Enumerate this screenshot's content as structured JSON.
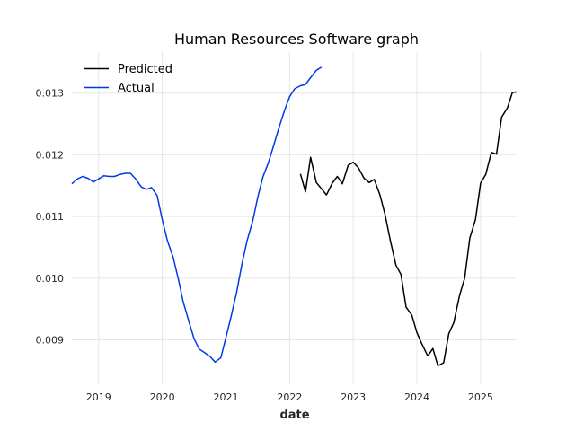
{
  "chart_data": {
    "type": "line",
    "title": "Human Resources Software graph",
    "xlabel": "date",
    "ylabel": "",
    "xlim": [
      2018.58,
      2025.58
    ],
    "ylim": [
      0.00828,
      0.01368
    ],
    "x_ticks": [
      2019,
      2020,
      2021,
      2022,
      2023,
      2024,
      2025
    ],
    "y_ticks": [
      0.009,
      0.01,
      0.011,
      0.012,
      0.013
    ],
    "y_tick_labels": [
      "0.009",
      "0.010",
      "0.011",
      "0.012",
      "0.013"
    ],
    "grid": true,
    "legend_position": "top-left",
    "series": [
      {
        "name": "Predicted",
        "color": "#000000",
        "points": [
          [
            2022.17,
            0.01169
          ],
          [
            2022.25,
            0.0114
          ],
          [
            2022.33,
            0.01196
          ],
          [
            2022.42,
            0.01155
          ],
          [
            2022.5,
            0.01145
          ],
          [
            2022.58,
            0.01135
          ],
          [
            2022.67,
            0.01154
          ],
          [
            2022.75,
            0.01165
          ],
          [
            2022.83,
            0.01153
          ],
          [
            2022.92,
            0.01183
          ],
          [
            2023.0,
            0.01188
          ],
          [
            2023.08,
            0.01179
          ],
          [
            2023.17,
            0.01162
          ],
          [
            2023.25,
            0.01155
          ],
          [
            2023.33,
            0.0116
          ],
          [
            2023.42,
            0.01135
          ],
          [
            2023.5,
            0.01103
          ],
          [
            2023.58,
            0.01062
          ],
          [
            2023.67,
            0.01021
          ],
          [
            2023.75,
            0.01006
          ],
          [
            2023.83,
            0.00953
          ],
          [
            2023.92,
            0.0094
          ],
          [
            2024.0,
            0.00912
          ],
          [
            2024.08,
            0.00893
          ],
          [
            2024.17,
            0.00874
          ],
          [
            2024.25,
            0.00886
          ],
          [
            2024.33,
            0.00858
          ],
          [
            2024.42,
            0.00863
          ],
          [
            2024.5,
            0.0091
          ],
          [
            2024.58,
            0.00928
          ],
          [
            2024.67,
            0.00972
          ],
          [
            2024.75,
            0.01
          ],
          [
            2024.83,
            0.01065
          ],
          [
            2024.92,
            0.01095
          ],
          [
            2025.0,
            0.01154
          ],
          [
            2025.08,
            0.01168
          ],
          [
            2025.17,
            0.01204
          ],
          [
            2025.25,
            0.01201
          ],
          [
            2025.33,
            0.01261
          ],
          [
            2025.42,
            0.01276
          ],
          [
            2025.5,
            0.01301
          ],
          [
            2025.58,
            0.01302
          ]
        ]
      },
      {
        "name": "Actual",
        "color": "#0039e6",
        "points": [
          [
            2018.58,
            0.01153
          ],
          [
            2018.67,
            0.01161
          ],
          [
            2018.75,
            0.01165
          ],
          [
            2018.83,
            0.01162
          ],
          [
            2018.92,
            0.01156
          ],
          [
            2019.0,
            0.01161
          ],
          [
            2019.08,
            0.01166
          ],
          [
            2019.17,
            0.01165
          ],
          [
            2019.25,
            0.01165
          ],
          [
            2019.33,
            0.01168
          ],
          [
            2019.42,
            0.0117
          ],
          [
            2019.5,
            0.0117
          ],
          [
            2019.58,
            0.01161
          ],
          [
            2019.67,
            0.01148
          ],
          [
            2019.75,
            0.01144
          ],
          [
            2019.83,
            0.01147
          ],
          [
            2019.92,
            0.01134
          ],
          [
            2020.0,
            0.01095
          ],
          [
            2020.08,
            0.01061
          ],
          [
            2020.17,
            0.01034
          ],
          [
            2020.25,
            0.01
          ],
          [
            2020.33,
            0.00961
          ],
          [
            2020.42,
            0.00929
          ],
          [
            2020.5,
            0.00902
          ],
          [
            2020.58,
            0.00885
          ],
          [
            2020.67,
            0.00879
          ],
          [
            2020.75,
            0.00873
          ],
          [
            2020.83,
            0.00864
          ],
          [
            2020.92,
            0.00871
          ],
          [
            2021.0,
            0.00904
          ],
          [
            2021.08,
            0.00937
          ],
          [
            2021.17,
            0.00978
          ],
          [
            2021.25,
            0.01022
          ],
          [
            2021.33,
            0.0106
          ],
          [
            2021.42,
            0.01092
          ],
          [
            2021.5,
            0.01131
          ],
          [
            2021.58,
            0.01164
          ],
          [
            2021.67,
            0.01188
          ],
          [
            2021.75,
            0.01215
          ],
          [
            2021.83,
            0.01243
          ],
          [
            2021.92,
            0.01272
          ],
          [
            2022.0,
            0.01294
          ],
          [
            2022.08,
            0.01307
          ],
          [
            2022.17,
            0.01312
          ],
          [
            2022.25,
            0.01314
          ],
          [
            2022.33,
            0.01325
          ],
          [
            2022.42,
            0.01337
          ],
          [
            2022.5,
            0.01342
          ]
        ]
      }
    ]
  }
}
